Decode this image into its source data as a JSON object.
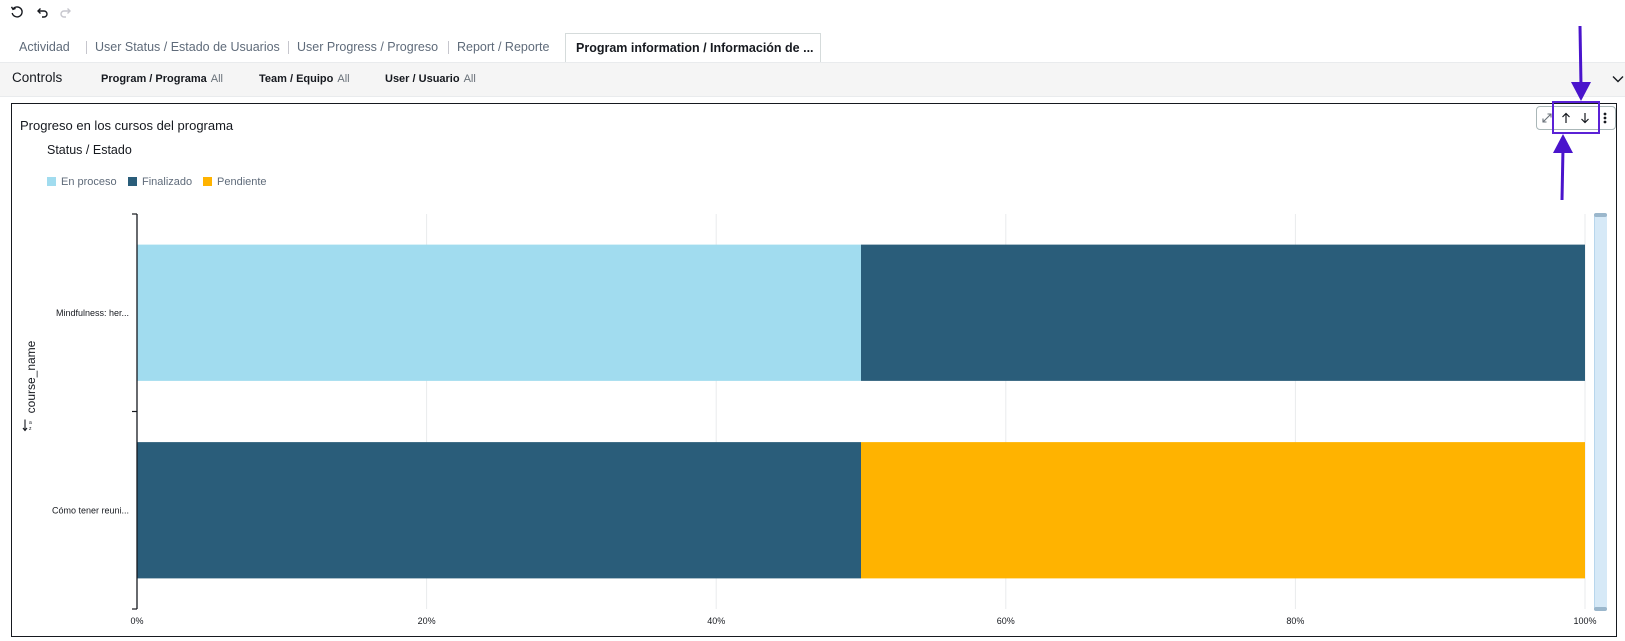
{
  "toolbar": {
    "icons": [
      "refresh-icon",
      "undo-icon",
      "redo-icon"
    ]
  },
  "tabs": [
    {
      "label": "Actividad"
    },
    {
      "label": "User Status / Estado de Usuarios"
    },
    {
      "label": "User Progress / Progreso"
    },
    {
      "label": "Report / Reporte"
    },
    {
      "label": "Program information / Información de ..."
    }
  ],
  "active_tab_index": 4,
  "controls": {
    "title": "Controls",
    "filters": [
      {
        "label": "Program / Programa",
        "value": "All"
      },
      {
        "label": "Team / Equipo",
        "value": "All"
      },
      {
        "label": "User / Usuario",
        "value": "All"
      }
    ]
  },
  "visual": {
    "title": "Progreso en los cursos del programa",
    "menu_icons": [
      "expand-icon",
      "arrow-up-icon",
      "arrow-down-icon",
      "more-vertical-icon"
    ]
  },
  "annotation": {
    "color": "#4a14cc"
  },
  "chart_data": {
    "type": "bar",
    "orientation": "horizontal",
    "stacked": "percent",
    "legend_title": "Status / Estado",
    "legend_position": "top-left",
    "ylabel": "course_name",
    "categories": [
      "Mindfulness: her...",
      "Cómo tener reuni..."
    ],
    "series": [
      {
        "name": "En proceso",
        "color": "#a1dcef",
        "values": [
          50,
          0
        ]
      },
      {
        "name": "Finalizado",
        "color": "#2a5d7a",
        "values": [
          50,
          50
        ]
      },
      {
        "name": "Pendiente",
        "color": "#ffb300",
        "values": [
          0,
          50
        ]
      }
    ],
    "x_ticks": [
      "0%",
      "20%",
      "40%",
      "60%",
      "80%",
      "100%"
    ],
    "xlim": [
      0,
      100
    ],
    "grid": true
  },
  "colors": {
    "tab_text": "#5f6b7a",
    "controls_bg": "#f5f5f5",
    "grid": "#e9ebed",
    "axis": "#16191f"
  }
}
